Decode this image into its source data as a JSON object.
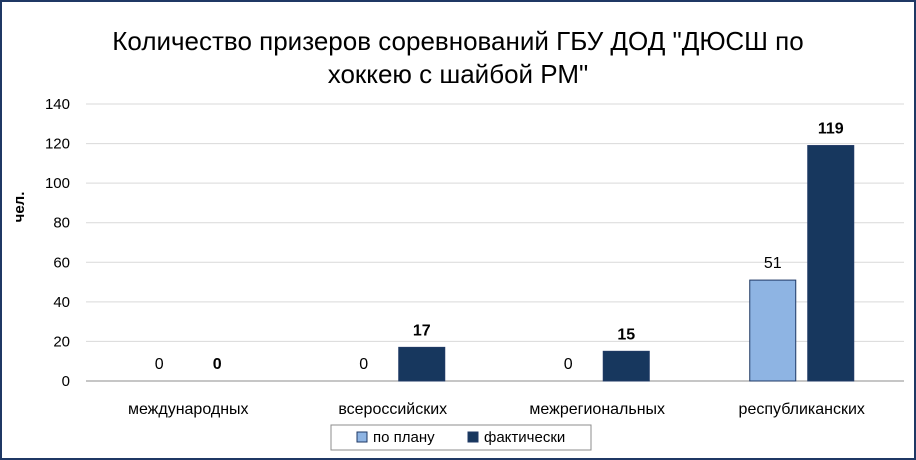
{
  "chart_data": {
    "type": "bar",
    "title": "Количество призеров соревнований ГБУ ДОД \"ДЮСШ по хоккею с шайбой РМ\"",
    "title_lines": [
      "Количество призеров соревнований ГБУ ДОД \"ДЮСШ по",
      "хоккею с шайбой РМ\""
    ],
    "ylabel": "чел.",
    "xlabel": "",
    "ylim": [
      0,
      140
    ],
    "yticks": [
      0,
      20,
      40,
      60,
      80,
      100,
      120,
      140
    ],
    "grid": true,
    "legend_position": "bottom",
    "categories": [
      "международных",
      "всероссийских",
      "межрегиональных",
      "республиканских"
    ],
    "series": [
      {
        "name": "по плану",
        "values": [
          0,
          0,
          0,
          51
        ],
        "color": "#8eb4e3",
        "label_bold": false
      },
      {
        "name": "фактически",
        "values": [
          0,
          17,
          15,
          119
        ],
        "color": "#17375e",
        "label_bold": true
      }
    ]
  }
}
